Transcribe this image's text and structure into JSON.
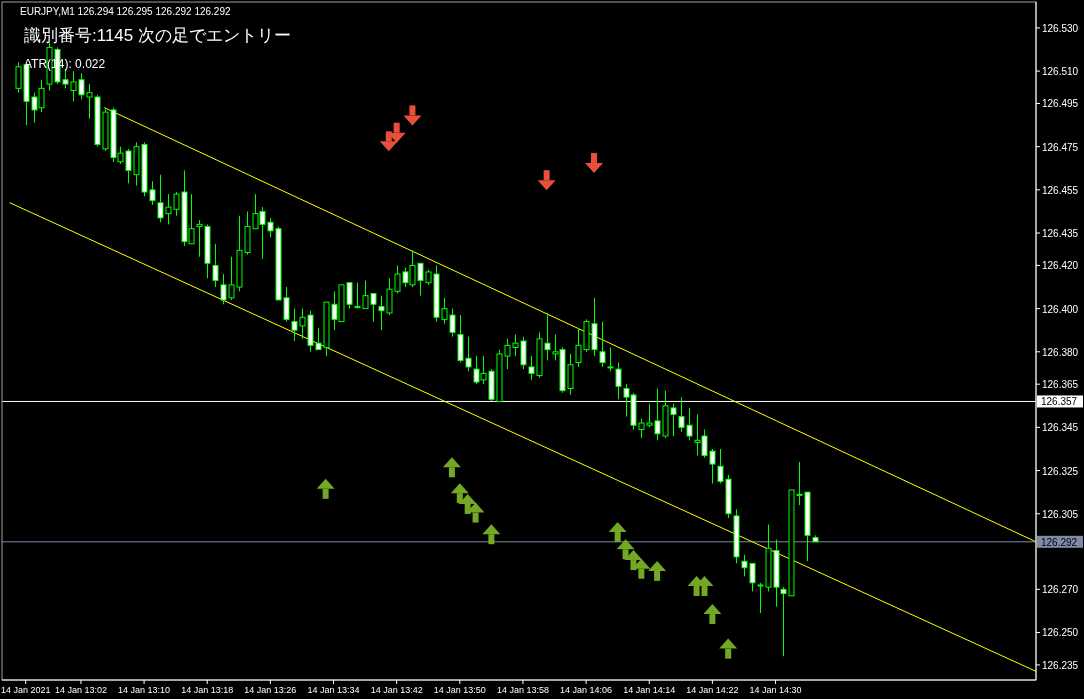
{
  "chart_data": {
    "type": "candlestick",
    "title": "EURJPY,M1  126.294 126.295 126.292 126.292",
    "subtitle": "識別番号:1145  次の足でエントリー",
    "annotations": [
      "ATR(14): 0.022"
    ],
    "xlim": [
      "2021-01-14T12:52",
      "2021-01-14T15:03"
    ],
    "ylim": [
      126.228,
      126.542
    ],
    "xticks": [
      {
        "value": "2021-01-14T12:55",
        "label": "14 Jan 2021"
      },
      {
        "value": "2021-01-14T13:02",
        "label": "14 Jan 13:02"
      },
      {
        "value": "2021-01-14T13:10",
        "label": "14 Jan 13:10"
      },
      {
        "value": "2021-01-14T13:18",
        "label": "14 Jan 13:18"
      },
      {
        "value": "2021-01-14T13:26",
        "label": "14 Jan 13:26"
      },
      {
        "value": "2021-01-14T13:34",
        "label": "14 Jan 13:34"
      },
      {
        "value": "2021-01-14T13:42",
        "label": "14 Jan 13:42"
      },
      {
        "value": "2021-01-14T13:50",
        "label": "14 Jan 13:50"
      },
      {
        "value": "2021-01-14T13:58",
        "label": "14 Jan 13:58"
      },
      {
        "value": "2021-01-14T14:06",
        "label": "14 Jan 14:06"
      },
      {
        "value": "2021-01-14T14:14",
        "label": "14 Jan 14:14"
      },
      {
        "value": "2021-01-14T14:22",
        "label": "14 Jan 14:22"
      },
      {
        "value": "2021-01-14T14:30",
        "label": "14 Jan 14:30"
      }
    ],
    "yticks": [
      {
        "value": 126.53,
        "label": "126.530"
      },
      {
        "value": 126.51,
        "label": "126.510"
      },
      126.495,
      126.475,
      126.455,
      126.435,
      {
        "value": 126.42,
        "label": "126.420"
      },
      {
        "value": 126.4,
        "label": "126.400"
      },
      {
        "value": 126.38,
        "label": "126.380"
      },
      126.365,
      126.345,
      126.325,
      126.305,
      {
        "value": 126.27,
        "label": "126.270"
      },
      {
        "value": 126.25,
        "label": "126.250"
      },
      126.235
    ],
    "ref_lines": [
      {
        "axis": "y",
        "value": 126.357,
        "label": "126.357",
        "color": "#ffffff"
      },
      {
        "axis": "y",
        "value": 126.292,
        "label": "126.292",
        "color": "#7f8aa8"
      }
    ],
    "series": [
      {
        "type": "line",
        "color": "#ffff00",
        "x": [
          "2021-01-14T13:05",
          "2021-01-14T15:03"
        ],
        "values": [
          126.493,
          126.292
        ]
      },
      {
        "type": "line",
        "color": "#ffff00",
        "x": [
          "2021-01-14T12:53",
          "2021-01-14T15:03"
        ],
        "values": [
          126.449,
          126.232
        ]
      },
      {
        "type": "scatter",
        "marker": "triangle",
        "color": "#e8503a",
        "x": [
          "2021-01-14T13:41",
          "2021-01-14T13:42",
          "2021-01-14T13:44",
          "2021-01-14T14:01",
          "2021-01-14T14:07"
        ],
        "values": [
          126.477,
          126.481,
          126.489,
          126.459,
          126.467
        ]
      },
      {
        "type": "scatter",
        "marker": "triangle",
        "color": "#73a824",
        "x": [
          "2021-01-14T13:33",
          "2021-01-14T13:49",
          "2021-01-14T13:50",
          "2021-01-14T13:51",
          "2021-01-14T13:52",
          "2021-01-14T13:54",
          "2021-01-14T14:10",
          "2021-01-14T14:11",
          "2021-01-14T14:12",
          "2021-01-14T14:13",
          "2021-01-14T14:15",
          "2021-01-14T14:20",
          "2021-01-14T14:21",
          "2021-01-14T14:22",
          "2021-01-14T14:24"
        ],
        "values": [
          126.317,
          126.327,
          126.315,
          126.31,
          126.306,
          126.296,
          126.297,
          126.289,
          126.284,
          126.28,
          126.279,
          126.272,
          126.272,
          126.259,
          126.243
        ]
      },
      {
        "color": "#00ff00",
        "x": [
          "2021-01-14T12:54",
          "2021-01-14T12:55",
          "2021-01-14T12:56",
          "2021-01-14T12:57",
          "2021-01-14T12:58",
          "2021-01-14T12:59",
          "2021-01-14T13:00",
          "2021-01-14T13:01",
          "2021-01-14T13:02",
          "2021-01-14T13:03",
          "2021-01-14T13:04",
          "2021-01-14T13:05",
          "2021-01-14T13:06",
          "2021-01-14T13:07",
          "2021-01-14T13:08",
          "2021-01-14T13:09",
          "2021-01-14T13:10",
          "2021-01-14T13:11",
          "2021-01-14T13:12",
          "2021-01-14T13:13",
          "2021-01-14T13:14",
          "2021-01-14T13:15",
          "2021-01-14T13:16",
          "2021-01-14T13:17",
          "2021-01-14T13:18",
          "2021-01-14T13:19",
          "2021-01-14T13:20",
          "2021-01-14T13:21",
          "2021-01-14T13:22",
          "2021-01-14T13:23",
          "2021-01-14T13:24",
          "2021-01-14T13:25",
          "2021-01-14T13:26",
          "2021-01-14T13:27",
          "2021-01-14T13:28",
          "2021-01-14T13:29",
          "2021-01-14T13:30",
          "2021-01-14T13:31",
          "2021-01-14T13:32",
          "2021-01-14T13:33",
          "2021-01-14T13:34",
          "2021-01-14T13:35",
          "2021-01-14T13:36",
          "2021-01-14T13:37",
          "2021-01-14T13:38",
          "2021-01-14T13:39",
          "2021-01-14T13:40",
          "2021-01-14T13:41",
          "2021-01-14T13:42",
          "2021-01-14T13:43",
          "2021-01-14T13:44",
          "2021-01-14T13:45",
          "2021-01-14T13:46",
          "2021-01-14T13:47",
          "2021-01-14T13:48",
          "2021-01-14T13:49",
          "2021-01-14T13:50",
          "2021-01-14T13:51",
          "2021-01-14T13:52",
          "2021-01-14T13:53",
          "2021-01-14T13:54",
          "2021-01-14T13:55",
          "2021-01-14T13:56",
          "2021-01-14T13:57",
          "2021-01-14T13:58",
          "2021-01-14T13:59",
          "2021-01-14T14:00",
          "2021-01-14T14:01",
          "2021-01-14T14:02",
          "2021-01-14T14:03",
          "2021-01-14T14:04",
          "2021-01-14T14:05",
          "2021-01-14T14:06",
          "2021-01-14T14:07",
          "2021-01-14T14:08",
          "2021-01-14T14:09",
          "2021-01-14T14:10",
          "2021-01-14T14:11",
          "2021-01-14T14:12",
          "2021-01-14T14:13",
          "2021-01-14T14:14",
          "2021-01-14T14:15",
          "2021-01-14T14:16",
          "2021-01-14T14:17",
          "2021-01-14T14:18",
          "2021-01-14T14:19",
          "2021-01-14T14:20",
          "2021-01-14T14:21",
          "2021-01-14T14:22",
          "2021-01-14T14:23",
          "2021-01-14T14:24",
          "2021-01-14T14:25",
          "2021-01-14T14:26",
          "2021-01-14T14:27",
          "2021-01-14T14:28",
          "2021-01-14T14:29",
          "2021-01-14T14:30",
          "2021-01-14T14:31",
          "2021-01-14T14:32",
          "2021-01-14T14:33",
          "2021-01-14T14:34",
          "2021-01-14T14:35"
        ],
        "ohlc": [
          [
            126.502,
            126.514,
            126.5,
            126.512
          ],
          [
            126.513,
            126.514,
            126.485,
            126.496
          ],
          [
            126.498,
            126.5,
            126.486,
            126.492
          ],
          [
            126.493,
            126.506,
            126.491,
            126.502
          ],
          [
            126.504,
            126.523,
            126.501,
            126.521
          ],
          [
            126.52,
            126.521,
            126.504,
            126.505
          ],
          [
            126.506,
            126.511,
            126.502,
            126.504
          ],
          [
            126.501,
            126.51,
            126.496,
            126.505
          ],
          [
            126.506,
            126.509,
            126.497,
            126.499
          ],
          [
            126.498,
            126.504,
            126.488,
            126.5
          ],
          [
            126.498,
            126.499,
            126.475,
            126.476
          ],
          [
            126.474,
            126.493,
            126.473,
            126.491
          ],
          [
            126.492,
            126.493,
            126.468,
            126.47
          ],
          [
            126.468,
            126.475,
            126.467,
            126.472
          ],
          [
            126.473,
            126.474,
            126.458,
            126.464
          ],
          [
            126.462,
            126.477,
            126.457,
            126.475
          ],
          [
            126.476,
            126.477,
            126.452,
            126.454
          ],
          [
            126.455,
            126.459,
            126.448,
            126.45
          ],
          [
            126.449,
            126.462,
            126.44,
            126.442
          ],
          [
            126.444,
            126.453,
            126.439,
            126.447
          ],
          [
            126.446,
            126.454,
            126.443,
            126.453
          ],
          [
            126.454,
            126.464,
            126.429,
            126.431
          ],
          [
            126.43,
            126.453,
            126.43,
            126.437
          ],
          [
            126.438,
            126.441,
            126.424,
            126.439
          ],
          [
            126.438,
            126.439,
            126.414,
            126.421
          ],
          [
            126.42,
            126.43,
            126.41,
            126.413
          ],
          [
            126.411,
            126.416,
            126.402,
            126.404
          ],
          [
            126.405,
            126.424,
            126.404,
            126.411
          ],
          [
            126.41,
            126.443,
            126.408,
            126.427
          ],
          [
            126.426,
            126.445,
            126.425,
            126.438
          ],
          [
            126.437,
            126.453,
            126.437,
            126.444
          ],
          [
            126.445,
            126.447,
            126.423,
            126.439
          ],
          [
            126.44,
            126.442,
            126.433,
            126.436
          ],
          [
            126.437,
            126.438,
            126.404,
            126.404
          ],
          [
            126.405,
            126.41,
            126.394,
            126.395
          ],
          [
            126.394,
            126.4,
            126.385,
            126.39
          ],
          [
            126.392,
            126.4,
            126.386,
            126.396
          ],
          [
            126.397,
            126.399,
            126.38,
            126.383
          ],
          [
            126.384,
            126.391,
            126.381,
            126.381
          ],
          [
            126.382,
            126.403,
            126.378,
            126.403
          ],
          [
            126.402,
            126.408,
            126.39,
            126.395
          ],
          [
            126.394,
            126.411,
            126.394,
            126.411
          ],
          [
            126.412,
            126.412,
            126.4,
            126.402
          ],
          [
            126.401,
            126.412,
            126.4,
            126.401
          ],
          [
            126.4,
            126.413,
            126.4,
            126.406
          ],
          [
            126.407,
            126.407,
            126.394,
            126.402
          ],
          [
            126.401,
            126.406,
            126.39,
            126.399
          ],
          [
            126.398,
            126.414,
            126.397,
            126.409
          ],
          [
            126.408,
            126.42,
            126.407,
            126.416
          ],
          [
            126.417,
            126.419,
            126.41,
            126.412
          ],
          [
            126.411,
            126.427,
            126.41,
            126.42
          ],
          [
            126.421,
            126.421,
            126.406,
            126.413
          ],
          [
            126.412,
            126.418,
            126.411,
            126.417
          ],
          [
            126.416,
            126.42,
            126.394,
            126.396
          ],
          [
            126.395,
            126.405,
            126.393,
            126.4
          ],
          [
            126.397,
            126.4,
            126.387,
            126.389
          ],
          [
            126.388,
            126.397,
            126.375,
            126.376
          ],
          [
            126.377,
            126.387,
            126.371,
            126.373
          ],
          [
            126.372,
            126.378,
            126.365,
            126.366
          ],
          [
            126.367,
            126.378,
            126.365,
            126.37
          ],
          [
            126.371,
            126.372,
            126.357,
            126.358
          ],
          [
            126.357,
            126.381,
            126.357,
            126.379
          ],
          [
            126.378,
            126.386,
            126.372,
            126.383
          ],
          [
            126.382,
            126.388,
            126.378,
            126.384
          ],
          [
            126.385,
            126.387,
            126.372,
            126.374
          ],
          [
            126.373,
            126.378,
            126.367,
            126.37
          ],
          [
            126.369,
            126.389,
            126.368,
            126.386
          ],
          [
            126.384,
            126.398,
            126.376,
            126.381
          ],
          [
            126.379,
            126.388,
            126.376,
            126.38
          ],
          [
            126.381,
            126.382,
            126.361,
            126.362
          ],
          [
            126.363,
            126.379,
            126.36,
            126.374
          ],
          [
            126.375,
            126.391,
            126.373,
            126.383
          ],
          [
            126.381,
            126.395,
            126.38,
            126.394
          ],
          [
            126.393,
            126.405,
            126.378,
            126.381
          ],
          [
            126.38,
            126.394,
            126.373,
            126.375
          ],
          [
            126.373,
            126.382,
            126.371,
            126.373
          ],
          [
            126.372,
            126.375,
            126.358,
            126.364
          ],
          [
            126.363,
            126.365,
            126.35,
            126.359
          ],
          [
            126.36,
            126.361,
            126.344,
            126.346
          ],
          [
            126.344,
            126.349,
            126.34,
            126.347
          ],
          [
            126.346,
            126.356,
            126.345,
            126.347
          ],
          [
            126.348,
            126.363,
            126.339,
            126.342
          ],
          [
            126.341,
            126.362,
            126.34,
            126.355
          ],
          [
            126.354,
            126.356,
            126.341,
            126.351
          ],
          [
            126.35,
            126.359,
            126.343,
            126.345
          ],
          [
            126.346,
            126.354,
            126.339,
            126.341
          ],
          [
            126.338,
            126.351,
            126.332,
            126.339
          ],
          [
            126.341,
            126.344,
            126.331,
            126.332
          ],
          [
            126.334,
            126.335,
            126.319,
            126.328
          ],
          [
            126.327,
            126.335,
            126.319,
            126.32
          ],
          [
            126.321,
            126.323,
            126.303,
            126.305
          ],
          [
            126.304,
            126.307,
            126.282,
            126.285
          ],
          [
            126.283,
            126.286,
            126.276,
            126.28
          ],
          [
            126.282,
            126.282,
            126.269,
            126.273
          ],
          [
            126.272,
            126.273,
            126.259,
            126.272
          ],
          [
            126.271,
            126.3,
            126.269,
            126.289
          ],
          [
            126.288,
            126.293,
            126.262,
            126.271
          ],
          [
            126.27,
            126.271,
            126.239,
            126.268
          ],
          [
            126.267,
            126.316,
            126.267,
            126.316
          ],
          [
            126.314,
            126.329,
            126.309,
            126.314
          ],
          [
            126.315,
            126.315,
            126.283,
            126.295
          ],
          [
            126.294,
            126.295,
            126.292,
            126.292
          ]
        ]
      }
    ]
  }
}
